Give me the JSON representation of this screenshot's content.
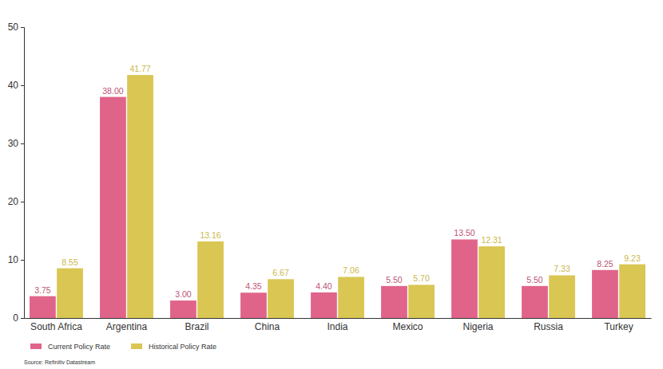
{
  "chart_data": {
    "type": "bar",
    "categories": [
      "South Africa",
      "Argentina",
      "Brazil",
      "China",
      "India",
      "Mexico",
      "Nigeria",
      "Russia",
      "Turkey"
    ],
    "series": [
      {
        "name": "Current Policy Rate",
        "color": "#e0648a",
        "values": [
          3.75,
          38.0,
          3.0,
          4.35,
          4.4,
          5.5,
          13.5,
          5.5,
          8.25
        ],
        "value_labels": [
          "3.75",
          "38.00",
          "3.00",
          "4.35",
          "4.40",
          "5.50",
          "13.50",
          "5.50",
          "8.25"
        ]
      },
      {
        "name": "Historical Policy Rate",
        "color": "#d9c653",
        "values": [
          8.55,
          41.77,
          13.16,
          6.67,
          7.06,
          5.7,
          12.31,
          7.33,
          9.23
        ],
        "value_labels": [
          "8.55",
          "41.77",
          "13.16",
          "6.67",
          "7.06",
          "5.70",
          "12.31",
          "7.33",
          "9.23"
        ]
      }
    ],
    "ylim": [
      0,
      50
    ],
    "yticks": [
      0,
      10,
      20,
      30,
      40,
      50
    ],
    "grid": false,
    "legend": "bottom",
    "data_labels": true,
    "annotations": [
      "Source: Refinitiv Datastream"
    ]
  }
}
